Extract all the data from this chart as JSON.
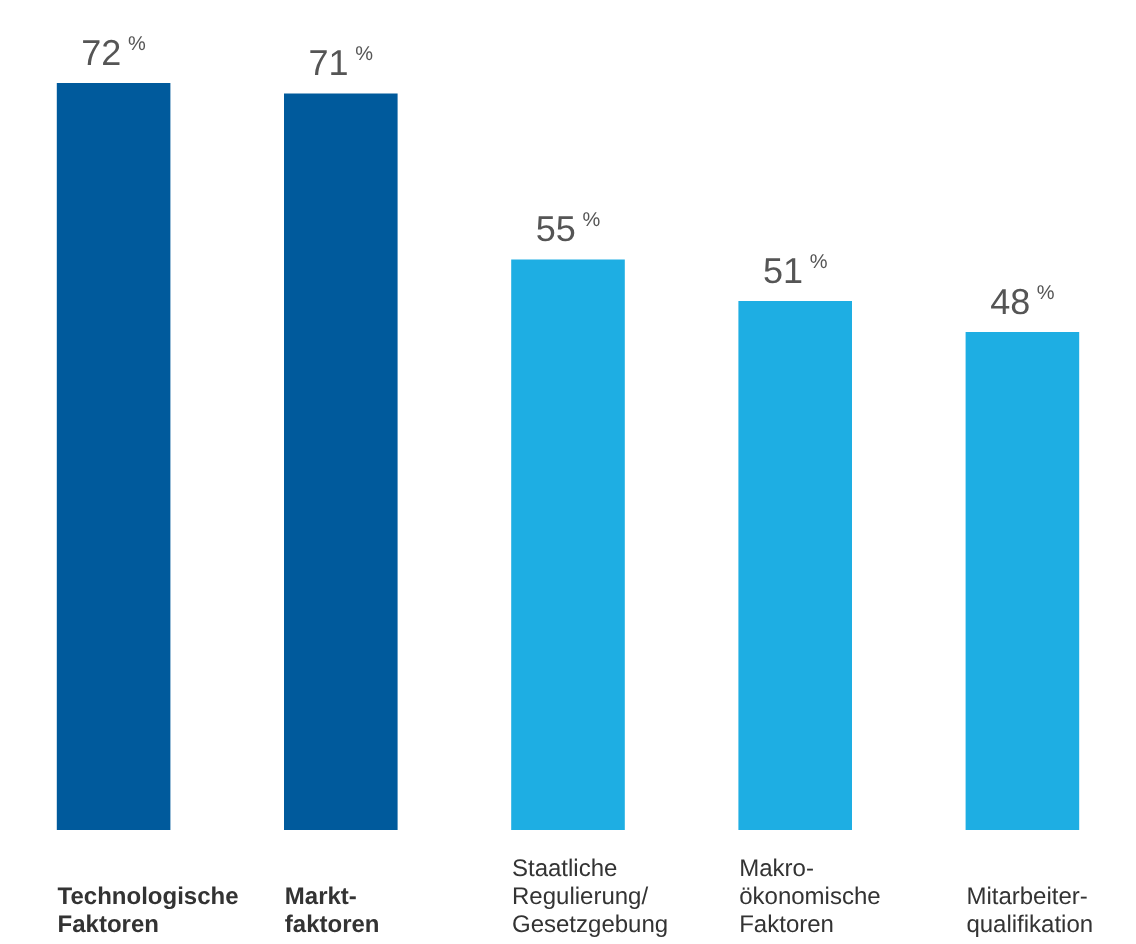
{
  "chart_data": {
    "type": "bar",
    "categories": [
      "Technologische\nFaktoren",
      "Markt-\nfaktoren",
      "Staatliche\nRegulierung/\nGesetzgebung",
      "Makro-\nökonomische\nFaktoren",
      "Mitarbeiter-\nqualifikation"
    ],
    "values": [
      72,
      71,
      55,
      51,
      48
    ],
    "value_labels": [
      "72 %",
      "71 %",
      "55 %",
      "51 %",
      "48 %"
    ],
    "colors": [
      "#005a9c",
      "#005a9c",
      "#1eaee3",
      "#1eaee3",
      "#1eaee3"
    ]
  }
}
